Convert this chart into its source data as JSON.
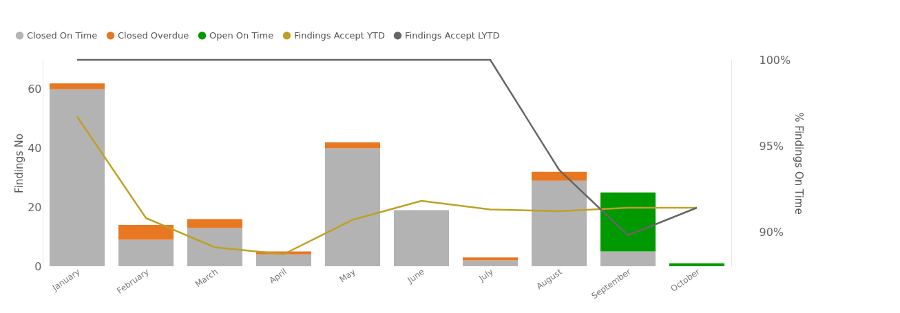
{
  "chart_data": {
    "type": "bar",
    "stacked": true,
    "legend": "top left",
    "grid": false,
    "ylabel": "Findings No",
    "y2label": "% Findings On Time",
    "categories": [
      "January",
      "February",
      "March",
      "April",
      "May",
      "June",
      "July",
      "August",
      "September",
      "October"
    ],
    "ylim": [
      0,
      70
    ],
    "yticks": [
      0,
      20,
      40,
      60
    ],
    "y2lim": [
      88,
      100
    ],
    "y2ticks": [
      {
        "value": 90,
        "label": "90%"
      },
      {
        "value": 95,
        "label": "95%"
      },
      {
        "value": 100,
        "label": "100%"
      }
    ],
    "series": [
      {
        "name": "Closed On Time",
        "color": "#b3b3b3",
        "values": [
          60,
          9,
          13,
          4,
          40,
          19,
          2,
          29,
          5,
          0
        ]
      },
      {
        "name": "Closed Overdue",
        "color": "#e87722",
        "values": [
          2,
          5,
          3,
          1,
          2,
          0,
          1,
          3,
          0,
          0
        ]
      },
      {
        "name": "Open On Time",
        "color": "#009900",
        "values": [
          0,
          0,
          0,
          0,
          0,
          0,
          0,
          0,
          20,
          1
        ]
      },
      {
        "name": "Findings Accept YTD",
        "type": "line",
        "axis": "y2",
        "color": "#bfa024",
        "values": [
          96.7,
          90.8,
          89.1,
          88.7,
          90.7,
          91.8,
          91.3,
          91.2,
          91.4,
          91.4
        ]
      },
      {
        "name": "Findings Accept LYTD",
        "type": "line",
        "axis": "y2",
        "color": "#666666",
        "values": [
          100,
          100,
          100,
          100,
          100,
          100,
          100,
          93.6,
          89.8,
          91.4
        ]
      }
    ]
  }
}
